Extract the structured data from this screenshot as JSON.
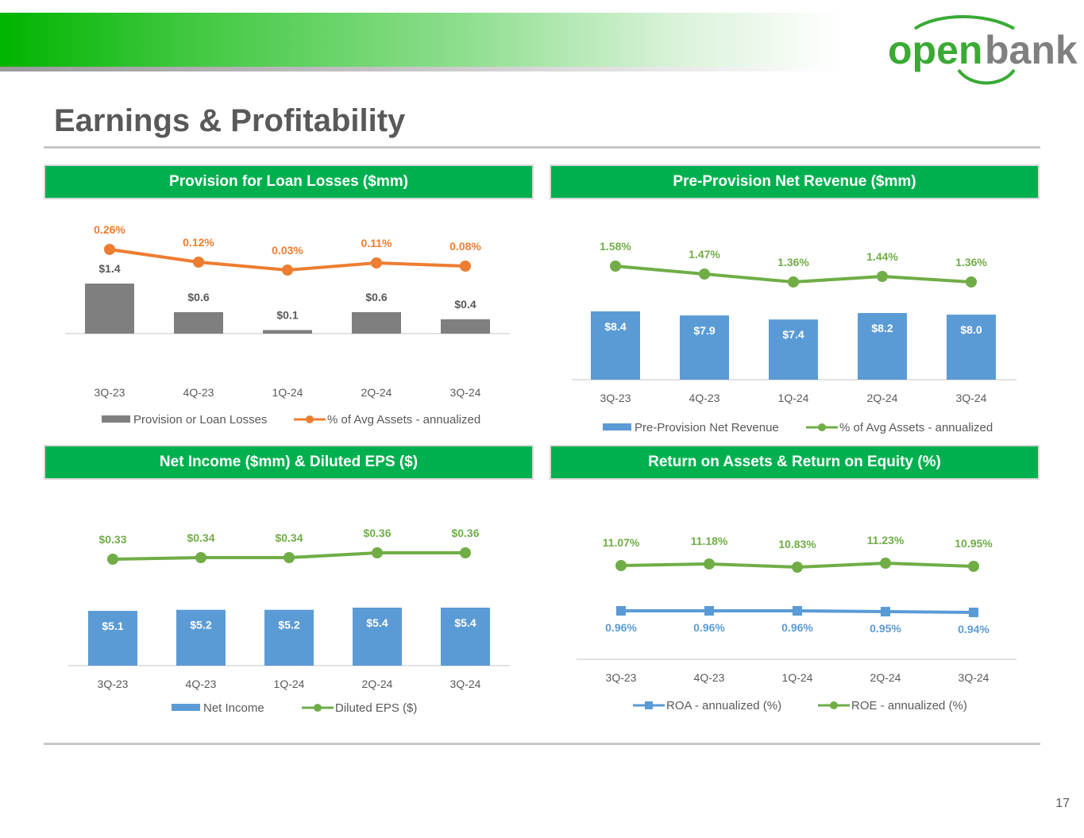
{
  "page": {
    "title": "Earnings & Profitability",
    "page_number": "17",
    "logo": {
      "text_open": "open",
      "text_bank": "bank"
    }
  },
  "colors": {
    "green": "#00b04f",
    "gray_bar": "#7f7f7f",
    "orange": "#ed7d31",
    "blue": "#5b9bd5",
    "line_green": "#70ad47",
    "axis_text": "#595959"
  },
  "panels": [
    {
      "title": "Provision for Loan Losses ($mm)"
    },
    {
      "title": "Pre-Provision Net Revenue ($mm)"
    },
    {
      "title": "Net Income ($mm) & Diluted EPS ($)"
    },
    {
      "title": "Return on Assets & Return on Equity (%)"
    }
  ],
  "chart_data": [
    {
      "type": "bar+line",
      "title": "Provision for Loan Losses ($mm)",
      "categories": [
        "3Q-23",
        "4Q-23",
        "1Q-24",
        "2Q-24",
        "3Q-24"
      ],
      "series": [
        {
          "name": "Provision or Loan Losses",
          "kind": "bar",
          "color": "#7f7f7f",
          "values": [
            1.4,
            0.6,
            0.1,
            0.6,
            0.4
          ],
          "labels": [
            "$1.4",
            "$0.6",
            "$0.1",
            "$0.6",
            "$0.4"
          ]
        },
        {
          "name": "% of Avg Assets - annualized",
          "kind": "line",
          "color": "#ed7d31",
          "values": [
            0.26,
            0.12,
            0.03,
            0.11,
            0.08
          ],
          "labels": [
            "0.26%",
            "0.12%",
            "0.03%",
            "0.11%",
            "0.08%"
          ]
        }
      ]
    },
    {
      "type": "bar+line",
      "title": "Pre-Provision Net Revenue ($mm)",
      "categories": [
        "3Q-23",
        "4Q-23",
        "1Q-24",
        "2Q-24",
        "3Q-24"
      ],
      "series": [
        {
          "name": "Pre-Provision Net Revenue",
          "kind": "bar",
          "color": "#5b9bd5",
          "values": [
            8.4,
            7.9,
            7.4,
            8.2,
            8.0
          ],
          "labels": [
            "$8.4",
            "$7.9",
            "$7.4",
            "$8.2",
            "$8.0"
          ]
        },
        {
          "name": "% of Avg Assets - annualized",
          "kind": "line",
          "color": "#70ad47",
          "values": [
            1.58,
            1.47,
            1.36,
            1.44,
            1.36
          ],
          "labels": [
            "1.58%",
            "1.47%",
            "1.36%",
            "1.44%",
            "1.36%"
          ]
        }
      ]
    },
    {
      "type": "bar+line",
      "title": "Net Income ($mm) & Diluted EPS ($)",
      "categories": [
        "3Q-23",
        "4Q-23",
        "1Q-24",
        "2Q-24",
        "3Q-24"
      ],
      "series": [
        {
          "name": "Net Income",
          "kind": "bar",
          "color": "#5b9bd5",
          "values": [
            5.1,
            5.2,
            5.2,
            5.4,
            5.4
          ],
          "labels": [
            "$5.1",
            "$5.2",
            "$5.2",
            "$5.4",
            "$5.4"
          ]
        },
        {
          "name": "Diluted EPS ($)",
          "kind": "line",
          "color": "#70ad47",
          "values": [
            0.33,
            0.34,
            0.34,
            0.36,
            0.36
          ],
          "labels": [
            "$0.33",
            "$0.34",
            "$0.34",
            "$0.36",
            "$0.36"
          ]
        }
      ]
    },
    {
      "type": "line",
      "title": "Return on Assets & Return on Equity (%)",
      "categories": [
        "3Q-23",
        "4Q-23",
        "1Q-24",
        "2Q-24",
        "3Q-24"
      ],
      "series": [
        {
          "name": "ROA - annualized (%)",
          "kind": "line",
          "marker": "square",
          "color": "#5b9bd5",
          "values": [
            0.96,
            0.96,
            0.96,
            0.95,
            0.94
          ],
          "labels": [
            "0.96%",
            "0.96%",
            "0.96%",
            "0.95%",
            "0.94%"
          ]
        },
        {
          "name": "ROE - annualized (%)",
          "kind": "line",
          "marker": "circle",
          "color": "#70ad47",
          "values": [
            11.07,
            11.18,
            10.83,
            11.23,
            10.95
          ],
          "labels": [
            "11.07%",
            "11.18%",
            "10.83%",
            "11.23%",
            "10.95%"
          ]
        }
      ]
    }
  ]
}
